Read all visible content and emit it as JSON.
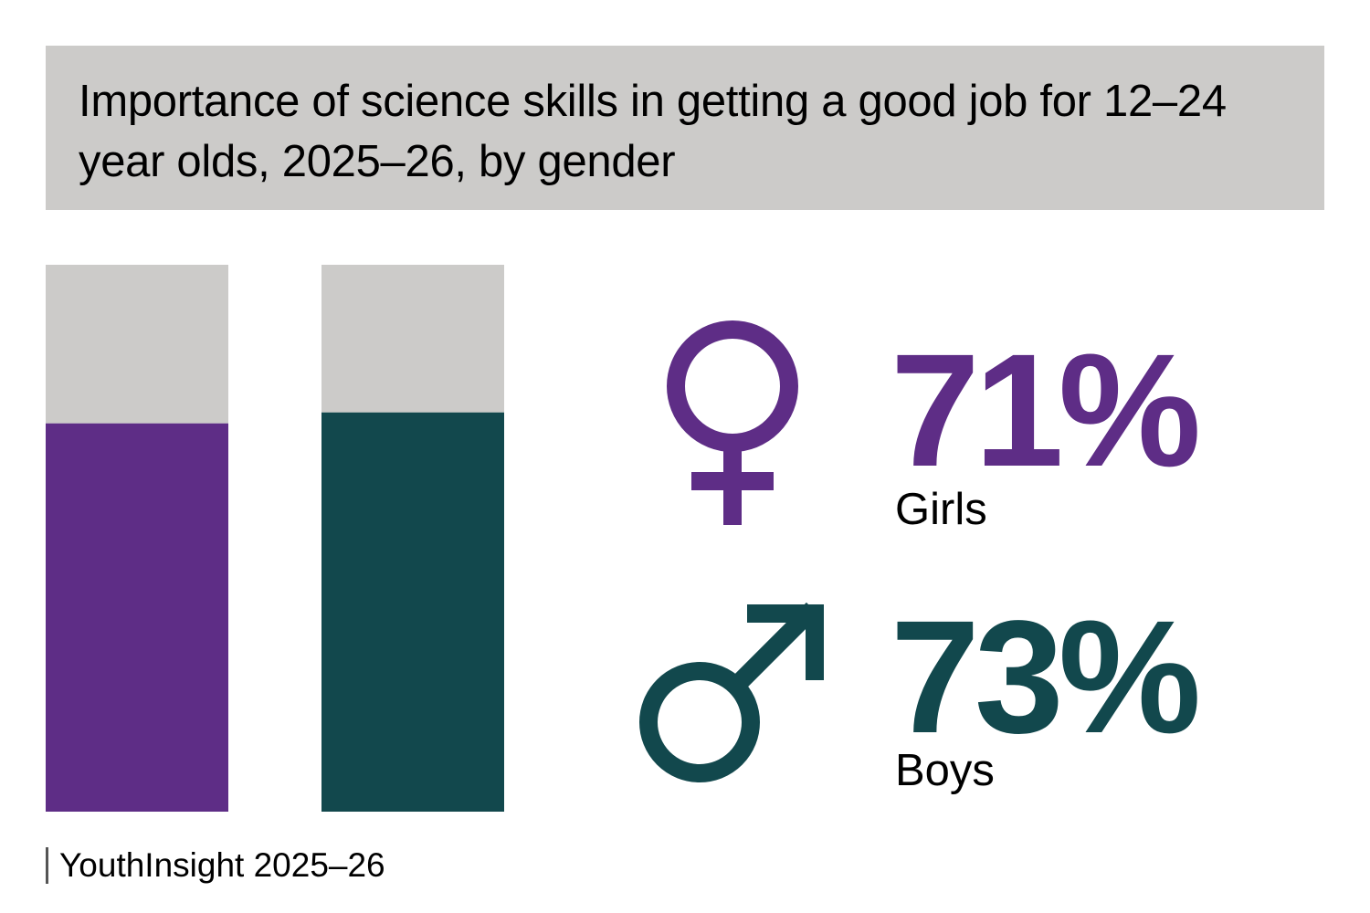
{
  "title": "Importance of science skills in getting a good job for 12–24 year olds, 2025–26, by gender",
  "source": "YouthInsight 2025–26",
  "colors": {
    "girls": "#5e2d86",
    "boys": "#12484d",
    "remainder": "#cccbc9",
    "title_background": "#cccbc9"
  },
  "chart_data": {
    "type": "bar",
    "stacked": true,
    "categories": [
      "Girls",
      "Boys"
    ],
    "ylim": [
      0,
      100
    ],
    "series": [
      {
        "values": [
          71,
          73
        ]
      },
      {
        "values": [
          29,
          27
        ]
      }
    ]
  },
  "stats": {
    "girls": {
      "value": "71%",
      "label": "Girls",
      "icon": "female-symbol-icon"
    },
    "boys": {
      "value": "73%",
      "label": "Boys",
      "icon": "male-symbol-icon"
    }
  }
}
